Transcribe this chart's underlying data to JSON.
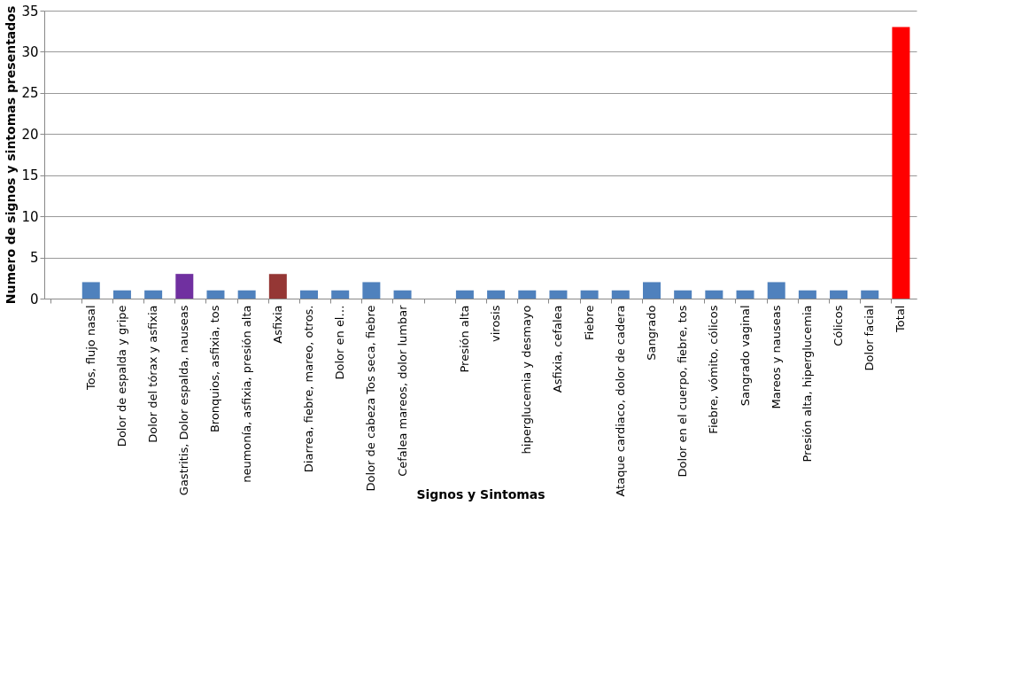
{
  "chart_data": {
    "type": "bar",
    "xlabel": "Signos y Sintomas",
    "ylabel": "Numero de signos y sintomas presentados",
    "categories": [
      null,
      "Tos, flujo nasal",
      "Dolor de espalda y gripe",
      "Dolor del tórax y asfixia",
      "Gastritis, Dolor espalda, nauseas",
      "Bronquios, asfixia, tos",
      "neumonía, asfixia, presión alta",
      "Asfixia",
      "Diarrea, fiebre, mareo, otros.",
      "Dolor en el…",
      "Dolor de cabeza Tos seca, fiebre",
      "Cefalea mareos, dolor lumbar",
      null,
      "Presión alta",
      "virosis",
      "hiperglucemia y desmayo",
      "Asfixia, cefalea",
      "Fiebre",
      "Ataque cardiaco, dolor de cadera",
      "Sangrado",
      "Dolor en el cuerpo,  fiebre,  tos",
      "Fiebre, vómito, cólicos",
      "Sangrado vaginal",
      "Mareos y nauseas",
      "Presión alta, hiperglucemia",
      "Cólicos",
      "Dolor facial",
      "Total"
    ],
    "values": [
      null,
      2,
      1,
      1,
      3,
      1,
      1,
      3,
      1,
      1,
      2,
      1,
      null,
      1,
      1,
      1,
      1,
      1,
      1,
      2,
      1,
      1,
      1,
      2,
      1,
      1,
      1,
      33
    ],
    "colors": [
      "#4f81bd",
      "#4f81bd",
      "#4f81bd",
      "#4f81bd",
      "#7030a0",
      "#4f81bd",
      "#4f81bd",
      "#953735",
      "#4f81bd",
      "#4f81bd",
      "#4f81bd",
      "#4f81bd",
      "#4f81bd",
      "#4f81bd",
      "#4f81bd",
      "#4f81bd",
      "#4f81bd",
      "#4f81bd",
      "#4f81bd",
      "#4f81bd",
      "#4f81bd",
      "#4f81bd",
      "#4f81bd",
      "#4f81bd",
      "#4f81bd",
      "#4f81bd",
      "#4f81bd",
      "#ff0000"
    ],
    "ylim": [
      0,
      35
    ],
    "yticks": [
      0,
      5,
      10,
      15,
      20,
      25,
      30,
      35
    ],
    "grid": "y"
  }
}
